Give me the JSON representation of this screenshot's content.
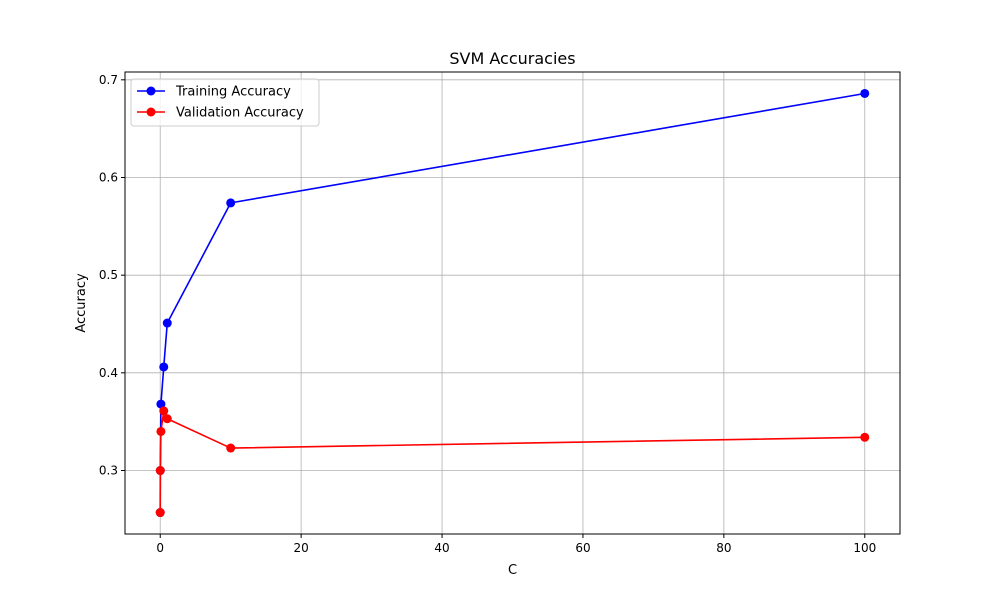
{
  "chart_data": {
    "type": "line",
    "title": "SVM Accuracies",
    "xlabel": "C",
    "ylabel": "Accuracy",
    "xlim": [
      -5,
      105
    ],
    "ylim": [
      0.235,
      0.708
    ],
    "xticks": [
      0,
      20,
      40,
      60,
      80,
      100
    ],
    "xtick_labels": [
      "0",
      "20",
      "40",
      "60",
      "80",
      "100"
    ],
    "yticks": [
      0.3,
      0.4,
      0.5,
      0.6,
      0.7
    ],
    "ytick_labels": [
      "0.3",
      "0.4",
      "0.5",
      "0.6",
      "0.7"
    ],
    "grid": true,
    "legend_position": "top-left",
    "series": [
      {
        "name": "Training Accuracy",
        "color": "#0000ff",
        "marker": "circle",
        "x": [
          0.001,
          0.01,
          0.1,
          0.5,
          1,
          10,
          100
        ],
        "y": [
          0.257,
          0.3,
          0.368,
          0.406,
          0.451,
          0.574,
          0.686
        ]
      },
      {
        "name": "Validation Accuracy",
        "color": "#ff0000",
        "marker": "circle",
        "x": [
          0.001,
          0.01,
          0.1,
          0.5,
          1,
          10,
          100
        ],
        "y": [
          0.257,
          0.3,
          0.34,
          0.361,
          0.353,
          0.323,
          0.334
        ]
      }
    ]
  }
}
